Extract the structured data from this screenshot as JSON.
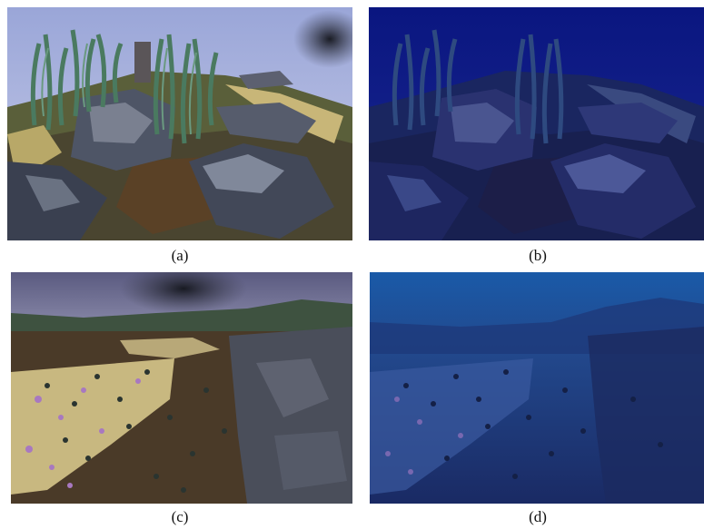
{
  "figure": {
    "panels": [
      {
        "id": "a",
        "caption": "(a)"
      },
      {
        "id": "b",
        "caption": "(b)"
      },
      {
        "id": "c",
        "caption": "(c)"
      },
      {
        "id": "d",
        "caption": "(d)"
      }
    ]
  }
}
